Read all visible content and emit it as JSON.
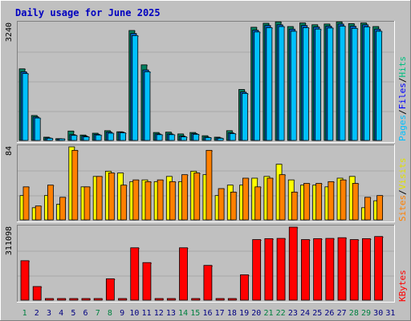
{
  "title": "Daily usage for June 2025",
  "colors": {
    "hits": "#00cccc",
    "files": "#0080ff",
    "pages": "#00c0ff",
    "visits": "#ffff00",
    "sites": "#ff8000",
    "kbytes": "#ff0000",
    "weekend": "#008040",
    "weekday": "#000080",
    "title": "#0000c0"
  },
  "legend": {
    "top": [
      {
        "text": "Hits",
        "color": "#00c080"
      },
      {
        "text": "/",
        "color": "#000000"
      },
      {
        "text": "Files",
        "color": "#0000ff"
      },
      {
        "text": "/",
        "color": "#000000"
      },
      {
        "text": "Pages",
        "color": "#00c0ff"
      }
    ],
    "middle": [
      {
        "text": "Visits",
        "color": "#e0e000"
      },
      {
        "text": "/",
        "color": "#000000"
      },
      {
        "text": "Sites",
        "color": "#ff8000"
      }
    ],
    "bottom": [
      {
        "text": "KBytes",
        "color": "#ff0000"
      }
    ]
  },
  "chart_data": {
    "type": "bar",
    "title": "Daily usage for June 2025",
    "categories": [
      "1",
      "2",
      "3",
      "4",
      "5",
      "6",
      "7",
      "8",
      "9",
      "10",
      "11",
      "12",
      "13",
      "14",
      "15",
      "16",
      "17",
      "18",
      "19",
      "20",
      "21",
      "22",
      "23",
      "24",
      "25",
      "26",
      "27",
      "28",
      "29",
      "30",
      "31"
    ],
    "weekend_days": [
      1,
      7,
      8,
      14,
      15,
      21,
      22,
      28,
      29
    ],
    "panels": [
      {
        "name": "hits-files-pages",
        "ymax_label": "3240",
        "ymax": 3240,
        "series": [
          {
            "name": "Hits",
            "values": [
              1980,
              690,
              90,
              50,
              260,
              150,
              200,
              270,
              240,
              3040,
              2090,
              220,
              230,
              180,
              220,
              130,
              90,
              270,
              1410,
              3130,
              3240,
              3280,
              3150,
              3250,
              3200,
              3220,
              3280,
              3230,
              3250,
              3150,
              0
            ]
          },
          {
            "name": "Files",
            "values": [
              1900,
              650,
              70,
              40,
              160,
              120,
              170,
              230,
              230,
              2960,
              1950,
              180,
              180,
              120,
              190,
              90,
              70,
              210,
              1340,
              3050,
              3180,
              3200,
              3080,
              3180,
              3140,
              3160,
              3220,
              3160,
              3200,
              3080,
              0
            ]
          },
          {
            "name": "Pages",
            "values": [
              1850,
              620,
              60,
              30,
              140,
              100,
              150,
              200,
              210,
              2900,
              1900,
              160,
              160,
              100,
              170,
              80,
              60,
              190,
              1300,
              3000,
              3120,
              3150,
              3020,
              3120,
              3080,
              3110,
              3160,
              3100,
              3140,
              3020,
              0
            ]
          }
        ]
      },
      {
        "name": "visits-sites",
        "ymax_label": "84",
        "ymax": 84,
        "series": [
          {
            "name": "Visits",
            "values": [
              28,
              14,
              28,
              18,
              84,
              38,
              50,
              56,
              54,
              44,
              46,
              44,
              50,
              44,
              56,
              52,
              28,
              40,
              40,
              48,
              50,
              64,
              46,
              40,
              40,
              38,
              48,
              50,
              14,
              22,
              0
            ]
          },
          {
            "name": "Sites",
            "values": [
              38,
              16,
              40,
              26,
              80,
              38,
              50,
              54,
              40,
              46,
              44,
              46,
              44,
              52,
              54,
              80,
              36,
              32,
              48,
              38,
              48,
              52,
              32,
              42,
              42,
              44,
              46,
              42,
              26,
              28,
              0
            ]
          }
        ]
      },
      {
        "name": "kbytes",
        "ymax_label": "311098",
        "ymax": 311098,
        "series": [
          {
            "name": "KBytes",
            "values": [
              168000,
              58000,
              1500,
              1000,
              5000,
              1500,
              2000,
              91000,
              1500,
              223000,
              160000,
              1500,
              1500,
              223000,
              1500,
              148000,
              1500,
              1500,
              108000,
              258000,
              262000,
              263000,
              311098,
              258000,
              262000,
              263000,
              266000,
              258000,
              262000,
              271000,
              0
            ]
          }
        ]
      }
    ]
  }
}
